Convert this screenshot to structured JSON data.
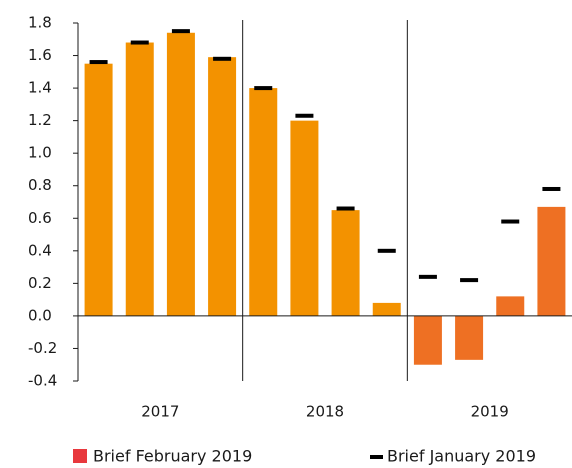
{
  "chart_data": {
    "type": "bar",
    "categories": [
      null,
      null,
      null,
      null,
      null,
      null,
      null,
      null,
      null,
      null,
      null,
      null
    ],
    "groups": [
      "2017",
      "2018",
      "2019"
    ],
    "series": [
      {
        "name": "Brief February 2019",
        "color": "#e8383d",
        "bar_colors": [
          "#f39200",
          "#f39200",
          "#f39200",
          "#f39200",
          "#f39200",
          "#f39200",
          "#f39200",
          "#f39200",
          "#ee7023",
          "#ee7023",
          "#ee7023",
          "#ee7023"
        ],
        "values": [
          1.55,
          1.68,
          1.74,
          1.59,
          1.4,
          1.2,
          0.65,
          0.08,
          -0.3,
          -0.27,
          0.12,
          0.67
        ]
      },
      {
        "name": "Brief January 2019",
        "color": "#000000",
        "marker": "dash",
        "values": [
          1.56,
          1.68,
          1.75,
          1.58,
          1.4,
          1.23,
          0.66,
          0.4,
          0.24,
          0.22,
          0.58,
          0.78
        ]
      }
    ],
    "ylim": [
      -0.4,
      1.8
    ],
    "yticks": [
      {
        "value": -0.4,
        "label": "-0.4"
      },
      {
        "value": -0.2,
        "label": "-0.2"
      },
      {
        "value": 0,
        "label": "0.0"
      },
      {
        "value": 0.2,
        "label": "0.2"
      },
      {
        "value": 0.4,
        "label": "0.4"
      },
      {
        "value": 0.6,
        "label": "0.6"
      },
      {
        "value": 0.8,
        "label": "0.8"
      },
      {
        "value": 1,
        "label": "1.0"
      },
      {
        "value": 1.2,
        "label": "1.2"
      },
      {
        "value": 1.4,
        "label": "1.4"
      },
      {
        "value": 1.6,
        "label": "1.6"
      },
      {
        "value": 1.8,
        "label": "1.8"
      }
    ],
    "legend": "bottom"
  }
}
